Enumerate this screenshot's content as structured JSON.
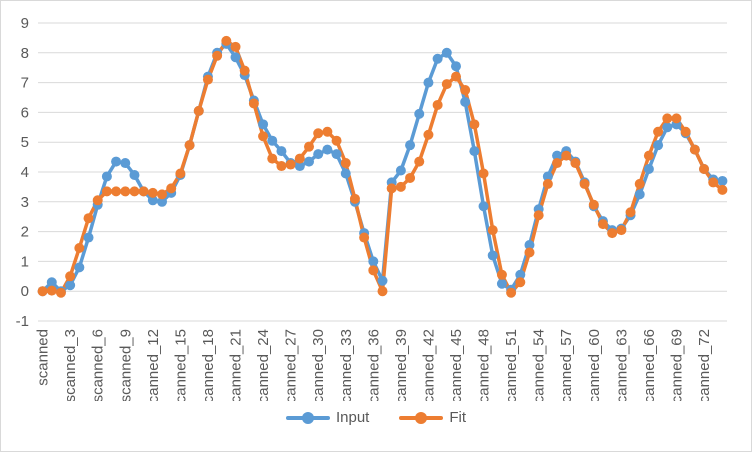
{
  "chart_data": {
    "type": "line",
    "grid": true,
    "legend_position": "bottom",
    "ylim": [
      -1,
      9
    ],
    "yticks": [
      "-1",
      "0",
      "1",
      "2",
      "3",
      "4",
      "5",
      "6",
      "7",
      "8",
      "9"
    ],
    "categories": [
      "scanned",
      "scanned_1",
      "scanned_2",
      "scanned_3",
      "scanned_4",
      "scanned_5",
      "scanned_6",
      "scanned_7",
      "scanned_8",
      "scanned_9",
      "scanned_10",
      "scanned_11",
      "scanned_12",
      "scanned_13",
      "scanned_14",
      "scanned_15",
      "scanned_16",
      "scanned_17",
      "scanned_18",
      "scanned_19",
      "scanned_20",
      "scanned_21",
      "scanned_22",
      "scanned_23",
      "scanned_24",
      "scanned_25",
      "scanned_26",
      "scanned_27",
      "scanned_28",
      "scanned_29",
      "scanned_30",
      "scanned_31",
      "scanned_32",
      "scanned_33",
      "scanned_34",
      "scanned_35",
      "scanned_36",
      "scanned_37",
      "scanned_38",
      "scanned_39",
      "scanned_40",
      "scanned_41",
      "scanned_42",
      "scanned_43",
      "scanned_44",
      "scanned_45",
      "scanned_46",
      "scanned_47",
      "scanned_48",
      "scanned_49",
      "scanned_50",
      "scanned_51",
      "scanned_52",
      "scanned_53",
      "scanned_54",
      "scanned_55",
      "scanned_56",
      "scanned_57",
      "scanned_58",
      "scanned_59",
      "scanned_60",
      "scanned_61",
      "scanned_62",
      "scanned_63",
      "scanned_64",
      "scanned_65",
      "scanned_66",
      "scanned_67",
      "scanned_68",
      "scanned_69",
      "scanned_70",
      "scanned_71",
      "scanned_72",
      "scanned_73",
      "scanned_74"
    ],
    "visible_labels": [
      "scanned",
      "scanned_3",
      "scanned_6",
      "scanned_9",
      "scanned_12",
      "scanned_15",
      "scanned_18",
      "scanned_21",
      "scanned_24",
      "scanned_27",
      "scanned_30",
      "scanned_33",
      "scanned_36",
      "scanned_39",
      "scanned_42",
      "scanned_45",
      "scanned_48",
      "scanned_51",
      "scanned_54",
      "scanned_57",
      "scanned_60",
      "scanned_63",
      "scanned_66",
      "scanned_69",
      "scanned_72"
    ],
    "series": [
      {
        "name": "Input",
        "color": "#5b9bd5",
        "values": [
          0,
          0.3,
          0,
          0.2,
          0.8,
          1.8,
          2.9,
          3.85,
          4.35,
          4.3,
          3.9,
          3.35,
          3.05,
          3.0,
          3.3,
          3.9,
          4.9,
          6.05,
          7.2,
          8.0,
          8.3,
          7.85,
          7.25,
          6.4,
          5.6,
          5.05,
          4.7,
          4.3,
          4.2,
          4.35,
          4.6,
          4.75,
          4.6,
          3.95,
          3.0,
          1.95,
          1.0,
          0.35,
          3.65,
          4.05,
          4.9,
          5.95,
          7.0,
          7.8,
          8.0,
          7.55,
          6.35,
          4.7,
          2.85,
          1.2,
          0.25,
          0.05,
          0.55,
          1.55,
          2.75,
          3.85,
          4.55,
          4.7,
          4.35,
          3.65,
          2.85,
          2.35,
          2.05,
          2.1,
          2.55,
          3.25,
          4.1,
          4.9,
          5.5,
          5.6,
          5.3,
          4.75,
          4.1,
          3.75,
          3.7
        ]
      },
      {
        "name": "Fit",
        "color": "#ed7d31",
        "values": [
          0,
          0.02,
          -0.05,
          0.5,
          1.45,
          2.45,
          3.05,
          3.35,
          3.35,
          3.35,
          3.35,
          3.35,
          3.3,
          3.25,
          3.45,
          3.95,
          4.9,
          6.05,
          7.1,
          7.9,
          8.4,
          8.2,
          7.4,
          6.3,
          5.2,
          4.45,
          4.2,
          4.25,
          4.45,
          4.85,
          5.3,
          5.35,
          5.05,
          4.3,
          3.1,
          1.8,
          0.7,
          0.0,
          3.45,
          3.5,
          3.8,
          4.35,
          5.25,
          6.25,
          6.95,
          7.2,
          6.75,
          5.6,
          3.95,
          2.05,
          0.55,
          -0.05,
          0.3,
          1.3,
          2.55,
          3.6,
          4.3,
          4.55,
          4.3,
          3.6,
          2.9,
          2.25,
          1.95,
          2.05,
          2.65,
          3.6,
          4.55,
          5.35,
          5.8,
          5.8,
          5.35,
          4.75,
          4.1,
          3.65,
          3.4
        ]
      }
    ]
  }
}
